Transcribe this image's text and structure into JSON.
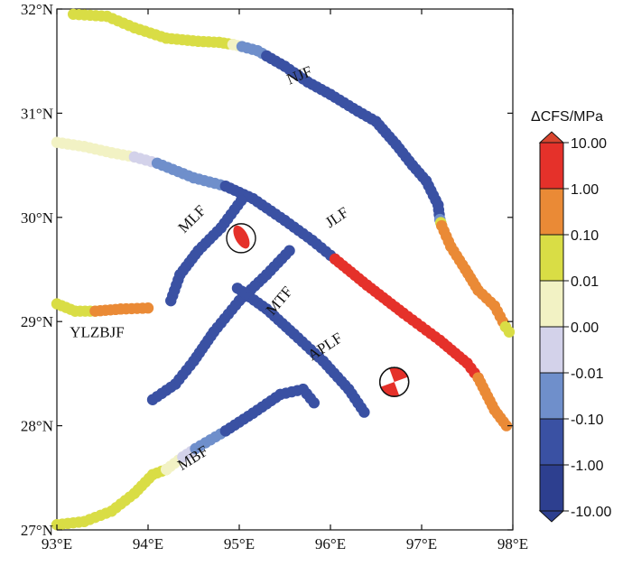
{
  "map": {
    "lon_range": [
      93,
      98
    ],
    "lat_range": [
      27,
      32
    ],
    "x_ticks": [
      {
        "value": 93,
        "label": "93°E"
      },
      {
        "value": 94,
        "label": "94°E"
      },
      {
        "value": 95,
        "label": "95°E"
      },
      {
        "value": 96,
        "label": "96°E"
      },
      {
        "value": 97,
        "label": "97°E"
      },
      {
        "value": 98,
        "label": "98°E"
      }
    ],
    "y_ticks": [
      {
        "value": 32,
        "label": "32°N"
      },
      {
        "value": 31,
        "label": "31°N"
      },
      {
        "value": 30,
        "label": "30°N"
      },
      {
        "value": 29,
        "label": "29°N"
      },
      {
        "value": 28,
        "label": "28°N"
      },
      {
        "value": 27,
        "label": "27°N"
      }
    ]
  },
  "colorbar": {
    "title": "ΔCFS/MPa",
    "classes": [
      {
        "label": "10.00",
        "color": "#d9452f"
      },
      {
        "label": "1.00",
        "color": "#e5312a"
      },
      {
        "label": "0.10",
        "color": "#ea8a36"
      },
      {
        "label": "0.01",
        "color": "#d9dd45"
      },
      {
        "label": "0.00",
        "color": "#f2f2c4"
      },
      {
        "label": "-0.01",
        "color": "#d3d2ea"
      },
      {
        "label": "-0.10",
        "color": "#6f8fcb"
      },
      {
        "label": "-1.00",
        "color": "#3a51a3"
      },
      {
        "label": "-10.00",
        "color": "#2d3f8f"
      }
    ],
    "top_cap_color": "#d9452f",
    "bottom_cap_color": "#2d3f8f"
  },
  "faults": [
    {
      "name": "NJF",
      "label_at": [
        95.68,
        31.32
      ],
      "label_rotate": -22
    },
    {
      "name": "JLF",
      "label_at": [
        96.1,
        29.96
      ],
      "label_rotate": -34
    },
    {
      "name": "MLF",
      "label_at": [
        94.52,
        29.95
      ],
      "label_rotate": -45
    },
    {
      "name": "MTF",
      "label_at": [
        95.48,
        29.17
      ],
      "label_rotate": -50
    },
    {
      "name": "APLF",
      "label_at": [
        95.97,
        28.72
      ],
      "label_rotate": -33
    },
    {
      "name": "MBF",
      "label_at": [
        94.52,
        27.65
      ],
      "label_rotate": -32
    },
    {
      "name": "YLZBJF",
      "label_at": [
        93.44,
        28.85
      ],
      "label_rotate": 0
    }
  ],
  "fault_traces": [
    {
      "id": "njf",
      "segments": [
        {
          "color": "#d9dd45",
          "points": [
            [
              93.18,
              31.95
            ],
            [
              93.55,
              31.93
            ],
            [
              93.85,
              31.82
            ],
            [
              94.2,
              31.72
            ],
            [
              94.55,
              31.69
            ],
            [
              94.78,
              31.68
            ],
            [
              94.93,
              31.66
            ]
          ]
        },
        {
          "color": "#f2f2c4",
          "points": [
            [
              94.93,
              31.66
            ],
            [
              95.03,
              31.64
            ]
          ]
        },
        {
          "color": "#6f8fcb",
          "points": [
            [
              95.03,
              31.64
            ],
            [
              95.2,
              31.6
            ],
            [
              95.3,
              31.55
            ]
          ]
        },
        {
          "color": "#3a51a3",
          "points": [
            [
              95.3,
              31.55
            ],
            [
              95.5,
              31.45
            ],
            [
              95.75,
              31.3
            ],
            [
              96.0,
              31.18
            ],
            [
              96.3,
              31.02
            ],
            [
              96.5,
              30.92
            ],
            [
              96.72,
              30.7
            ],
            [
              96.9,
              30.5
            ],
            [
              97.05,
              30.35
            ],
            [
              97.18,
              30.12
            ],
            [
              97.2,
              29.98
            ]
          ]
        },
        {
          "color": "#6f8fcb",
          "points": [
            [
              97.2,
              29.98
            ],
            [
              97.21,
              29.95
            ]
          ]
        },
        {
          "color": "#d9dd45",
          "points": [
            [
              97.21,
              29.95
            ],
            [
              97.22,
              29.92
            ]
          ]
        },
        {
          "color": "#ea8a36",
          "points": [
            [
              97.22,
              29.92
            ],
            [
              97.32,
              29.72
            ],
            [
              97.48,
              29.5
            ],
            [
              97.62,
              29.3
            ],
            [
              97.8,
              29.15
            ],
            [
              97.92,
              28.95
            ]
          ]
        },
        {
          "color": "#d9dd45",
          "points": [
            [
              97.92,
              28.95
            ],
            [
              97.96,
              28.9
            ]
          ]
        }
      ]
    },
    {
      "id": "jlf",
      "segments": [
        {
          "color": "#f2f2c4",
          "points": [
            [
              93.0,
              30.72
            ],
            [
              93.3,
              30.68
            ],
            [
              93.6,
              30.62
            ],
            [
              93.85,
              30.58
            ]
          ]
        },
        {
          "color": "#d3d2ea",
          "points": [
            [
              93.85,
              30.58
            ],
            [
              94.1,
              30.52
            ]
          ]
        },
        {
          "color": "#6f8fcb",
          "points": [
            [
              94.1,
              30.52
            ],
            [
              94.5,
              30.38
            ],
            [
              94.85,
              30.3
            ]
          ]
        },
        {
          "color": "#3a51a3",
          "points": [
            [
              94.85,
              30.3
            ],
            [
              95.15,
              30.18
            ],
            [
              95.5,
              29.97
            ],
            [
              95.8,
              29.78
            ],
            [
              96.05,
              29.6
            ]
          ]
        },
        {
          "color": "#e5312a",
          "points": [
            [
              96.05,
              29.6
            ],
            [
              96.4,
              29.35
            ],
            [
              96.8,
              29.08
            ],
            [
              97.2,
              28.82
            ],
            [
              97.5,
              28.6
            ],
            [
              97.62,
              28.46
            ]
          ]
        },
        {
          "color": "#ea8a36",
          "points": [
            [
              97.62,
              28.46
            ],
            [
              97.8,
              28.15
            ],
            [
              97.93,
              28.0
            ]
          ]
        }
      ]
    },
    {
      "id": "mlf",
      "segments": [
        {
          "color": "#3a51a3",
          "points": [
            [
              95.02,
              30.16
            ],
            [
              94.8,
              29.9
            ],
            [
              94.55,
              29.68
            ],
            [
              94.35,
              29.45
            ],
            [
              94.25,
              29.2
            ]
          ]
        }
      ]
    },
    {
      "id": "mtf",
      "segments": [
        {
          "color": "#3a51a3",
          "points": [
            [
              95.55,
              29.68
            ],
            [
              95.3,
              29.45
            ],
            [
              95.0,
              29.2
            ],
            [
              94.72,
              28.9
            ],
            [
              94.5,
              28.62
            ],
            [
              94.3,
              28.4
            ],
            [
              94.05,
              28.25
            ]
          ]
        }
      ]
    },
    {
      "id": "aplf",
      "segments": [
        {
          "color": "#3a51a3",
          "points": [
            [
              94.98,
              29.32
            ],
            [
              95.3,
              29.12
            ],
            [
              95.6,
              28.88
            ],
            [
              95.92,
              28.62
            ],
            [
              96.2,
              28.35
            ],
            [
              96.37,
              28.13
            ]
          ]
        }
      ]
    },
    {
      "id": "mbf",
      "segments": [
        {
          "color": "#d9dd45",
          "points": [
            [
              93.0,
              27.05
            ],
            [
              93.3,
              27.08
            ],
            [
              93.6,
              27.18
            ],
            [
              93.85,
              27.35
            ],
            [
              94.05,
              27.53
            ],
            [
              94.2,
              27.58
            ]
          ]
        },
        {
          "color": "#f2f2c4",
          "points": [
            [
              94.2,
              27.58
            ],
            [
              94.38,
              27.7
            ]
          ]
        },
        {
          "color": "#d3d2ea",
          "points": [
            [
              94.38,
              27.7
            ],
            [
              94.52,
              27.78
            ]
          ]
        },
        {
          "color": "#6f8fcb",
          "points": [
            [
              94.52,
              27.78
            ],
            [
              94.85,
              27.95
            ]
          ]
        },
        {
          "color": "#3a51a3",
          "points": [
            [
              94.85,
              27.95
            ],
            [
              95.15,
              28.12
            ],
            [
              95.45,
              28.3
            ],
            [
              95.7,
              28.35
            ],
            [
              95.82,
              28.22
            ]
          ]
        }
      ]
    },
    {
      "id": "ylzbjf",
      "segments": [
        {
          "color": "#d9dd45",
          "points": [
            [
              93.0,
              29.17
            ],
            [
              93.2,
              29.1
            ],
            [
              93.42,
              29.1
            ]
          ]
        },
        {
          "color": "#ea8a36",
          "points": [
            [
              93.42,
              29.1
            ],
            [
              93.7,
              29.12
            ],
            [
              94.0,
              29.13
            ]
          ]
        }
      ]
    }
  ],
  "beachballs": [
    {
      "name": "beachball-1",
      "lon": 95.02,
      "lat": 29.8,
      "color": "#e5312a"
    },
    {
      "name": "beachball-2",
      "lon": 96.7,
      "lat": 28.42,
      "color": "#e5312a"
    }
  ]
}
